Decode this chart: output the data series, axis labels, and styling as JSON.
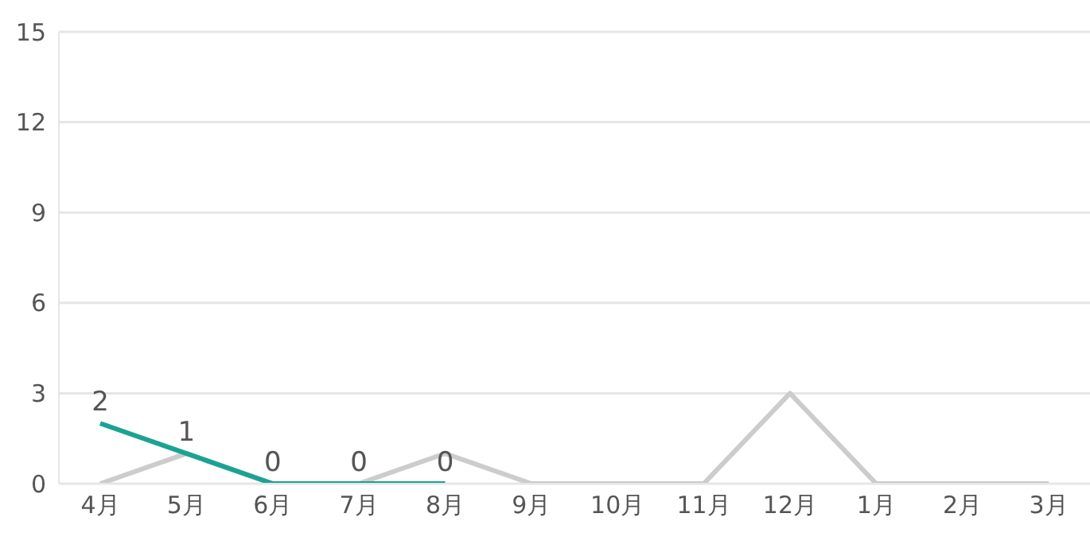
{
  "chart_data": {
    "type": "line",
    "categories": [
      "4月",
      "5月",
      "6月",
      "7月",
      "8月",
      "9月",
      "10月",
      "11月",
      "12月",
      "1月",
      "2月",
      "3月"
    ],
    "series": [
      {
        "color": "#cccccc",
        "values": [
          0,
          1,
          0,
          0,
          1,
          0,
          0,
          0,
          3,
          0,
          0,
          0
        ]
      },
      {
        "color": "#1aa393",
        "values": [
          2,
          1,
          0,
          0,
          0,
          null,
          null,
          null,
          null,
          null,
          null,
          null
        ],
        "value_labels": [
          "2",
          "1",
          "0",
          "0",
          "0",
          null,
          null,
          null,
          null,
          null,
          null,
          null
        ]
      }
    ],
    "ylim": [
      0,
      15
    ],
    "yticks": [
      0,
      3,
      6,
      9,
      12,
      15
    ],
    "grid": "y",
    "marker": "none",
    "line_style": "solid",
    "legend": false
  }
}
